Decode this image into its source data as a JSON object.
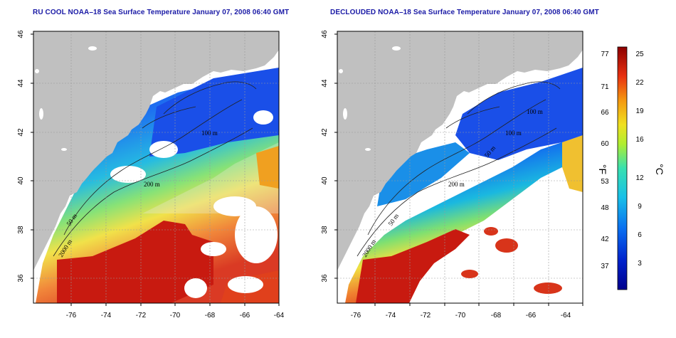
{
  "left_map": {
    "title": "RU COOL NOAA–18 Sea Surface Temperature January 07, 2008 06:40 GMT",
    "contour_labels": [
      "100 m",
      "200 m",
      "50 m",
      "2000 m"
    ]
  },
  "right_map": {
    "title": "DECLOUDED NOAA–18 Sea Surface Temperature January 07, 2008 06:40 GMT",
    "contour_labels": [
      "100 m",
      "100 m",
      "50 m",
      "200 m",
      "50 m",
      "2000 m"
    ]
  },
  "axes": {
    "lon_ticks": [
      "-76",
      "-74",
      "-72",
      "-70",
      "-68",
      "-66",
      "-64"
    ],
    "lat_ticks": [
      "36",
      "38",
      "40",
      "42",
      "44",
      "46"
    ]
  },
  "colorbar": {
    "f_label": "°F",
    "c_label": "°C",
    "f_ticks": [
      "77",
      "71",
      "66",
      "60",
      "53",
      "48",
      "42",
      "37"
    ],
    "c_ticks": [
      "25",
      "22",
      "19",
      "16",
      "12",
      "9",
      "6",
      "3"
    ]
  },
  "colors": {
    "land": "#c0c0c0",
    "cloud": "#ffffff",
    "title": "#1a1aa6",
    "cold": "#0033cc",
    "warm": "#cc0000"
  }
}
